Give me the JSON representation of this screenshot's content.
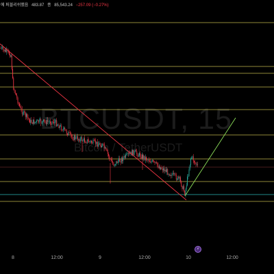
{
  "header": {
    "title_fragment": "에 퍼블리쉬했음",
    "open_value": "483.87",
    "close_label": "종",
    "close_value": "85,543.24",
    "change": "−257.09 (−0.27%)"
  },
  "watermark": {
    "symbol": "BTCUSDT, 15",
    "name": "Bitcoin / TetherUSDT"
  },
  "colors": {
    "background": "#000000",
    "up": "#26a69a",
    "down": "#f23645",
    "level_line": "#e3d95a",
    "trendline_down": "#f23645",
    "trendline_up": "#8de05a",
    "support_line": "#2bb5b5"
  },
  "x_axis": {
    "ticks": [
      "8",
      "12:00",
      "9",
      "12:00",
      "10",
      "12:00"
    ]
  },
  "event_icon": "lightning-icon",
  "chart_data": {
    "type": "candlestick",
    "title": "",
    "xlabel": "",
    "ylabel": "",
    "x": [
      "8",
      "12:00",
      "9",
      "12:00",
      "10",
      "12:00"
    ],
    "level_lines": [
      "yellow horizontal support/resistance levels (8 visible)"
    ],
    "annotations": [
      "descending trendline (red)",
      "ascending trendline (green)",
      "teal support line"
    ],
    "grid": false
  }
}
